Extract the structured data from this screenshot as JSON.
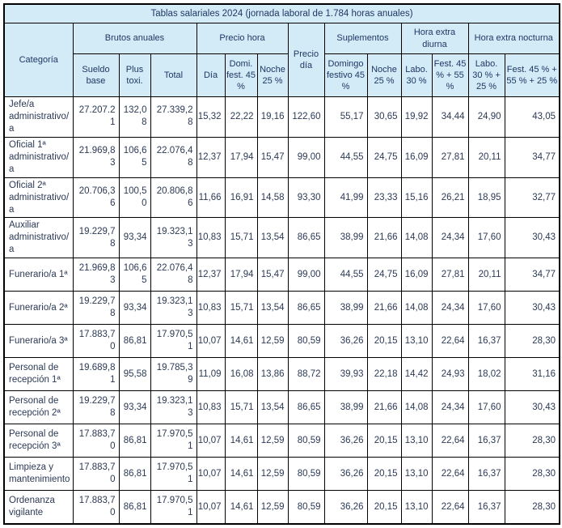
{
  "title": "Tablas salariales 2024 (jornada laboral de 1.784 horas anuales)",
  "colors": {
    "header_bg": "#d3eaf7",
    "border": "#000000",
    "header_text": "#1f3864",
    "body_text": "#2b3a55"
  },
  "header": {
    "category": "Categoría",
    "groups": [
      {
        "label": "Brutos anuales"
      },
      {
        "label": "Precio hora"
      },
      {
        "label": "Precio día"
      },
      {
        "label": "Suplementos"
      },
      {
        "label": "Hora extra diurna"
      },
      {
        "label": "Hora extra nocturna"
      }
    ],
    "subheaders": [
      "Sueldo base",
      "Plus toxi.",
      "Total",
      "Día",
      "Domi. fest. 45 %",
      "Noche 25 %",
      "Domingo festivo 45 %",
      "Noche 25 %",
      "Labo. 30 %",
      "Fest. 45 % + 55 %",
      "Labo. 30 % + 25 %",
      "Fest. 45 % + 55 % + 25 %"
    ]
  },
  "rows": [
    {
      "category": "Jefe/a administrativo/a",
      "values": [
        "27.207.21",
        "132,08",
        "27.339,28",
        "15,32",
        "22,22",
        "19,16",
        "122,60",
        "55,17",
        "30,65",
        "19,92",
        "34,44",
        "24,90",
        "43,05"
      ]
    },
    {
      "category": "Oficial 1ª administrativo/a",
      "values": [
        "21.969,83",
        "106,65",
        "22.076,48",
        "12,37",
        "17,94",
        "15,47",
        "99,00",
        "44,55",
        "24,75",
        "16,09",
        "27,81",
        "20,11",
        "34,77"
      ]
    },
    {
      "category": "Oficial 2ª administrativo/a",
      "values": [
        "20.706,36",
        "100,50",
        "20.806,86",
        "11,66",
        "16,91",
        "14,58",
        "93,30",
        "41,99",
        "23,33",
        "15,16",
        "26,21",
        "18,95",
        "32,77"
      ]
    },
    {
      "category": "Auxiliar administrativo/a",
      "values": [
        "19.229,78",
        "93,34",
        "19.323,13",
        "10,83",
        "15,71",
        "13,54",
        "86,65",
        "38,99",
        "21,66",
        "14,08",
        "24,34",
        "17,60",
        "30,43"
      ]
    },
    {
      "category": "Funerario/a 1ª",
      "values": [
        "21.969,83",
        "106,65",
        "22.076,48",
        "12,37",
        "17,94",
        "15,47",
        "99,00",
        "44,55",
        "24,75",
        "16,09",
        "27,81",
        "20,11",
        "34,77"
      ]
    },
    {
      "category": "Funerario/a 2ª",
      "values": [
        "19.229,78",
        "93,34",
        "19.323,13",
        "10,83",
        "15,71",
        "13,54",
        "86,65",
        "38,99",
        "21,66",
        "14,08",
        "24,34",
        "17,60",
        "30,43"
      ]
    },
    {
      "category": "Funerario/a 3ª",
      "values": [
        "17.883,70",
        "86,81",
        "17.970,51",
        "10,07",
        "14,61",
        "12,59",
        "80,59",
        "36,26",
        "20,15",
        "13,10",
        "22,64",
        "16,37",
        "28,30"
      ]
    },
    {
      "category": "Personal de recepción 1ª",
      "values": [
        "19.689,81",
        "95,58",
        "19.785,39",
        "11,09",
        "16,08",
        "13,86",
        "88,72",
        "39,93",
        "22,18",
        "14,42",
        "24,93",
        "18,02",
        "31,16"
      ]
    },
    {
      "category": "Personal de recepción 2ª",
      "values": [
        "19.229,78",
        "93,34",
        "19.323,13",
        "10,83",
        "15,71",
        "13,54",
        "86,65",
        "38,99",
        "21,66",
        "14,08",
        "24,34",
        "17,60",
        "30,43"
      ]
    },
    {
      "category": "Personal de recepción 3ª",
      "values": [
        "17.883,70",
        "86,81",
        "17.970,51",
        "10,07",
        "14,61",
        "12,59",
        "80,59",
        "36,26",
        "20,15",
        "13,10",
        "22,64",
        "16,37",
        "28,30"
      ]
    },
    {
      "category": "Limpieza y mantenimiento",
      "values": [
        "17.883,70",
        "86,81",
        "17.970,51",
        "10,07",
        "14,61",
        "12,59",
        "80,59",
        "36,26",
        "20,15",
        "13,10",
        "22,64",
        "16,37",
        "28,30"
      ]
    },
    {
      "category": "Ordenanza vigilante",
      "values": [
        "17.883,70",
        "86,81",
        "17.970,51",
        "10,07",
        "14,61",
        "12,59",
        "80,59",
        "36,26",
        "20,15",
        "13,10",
        "22,64",
        "16,37",
        "28,30"
      ]
    }
  ]
}
